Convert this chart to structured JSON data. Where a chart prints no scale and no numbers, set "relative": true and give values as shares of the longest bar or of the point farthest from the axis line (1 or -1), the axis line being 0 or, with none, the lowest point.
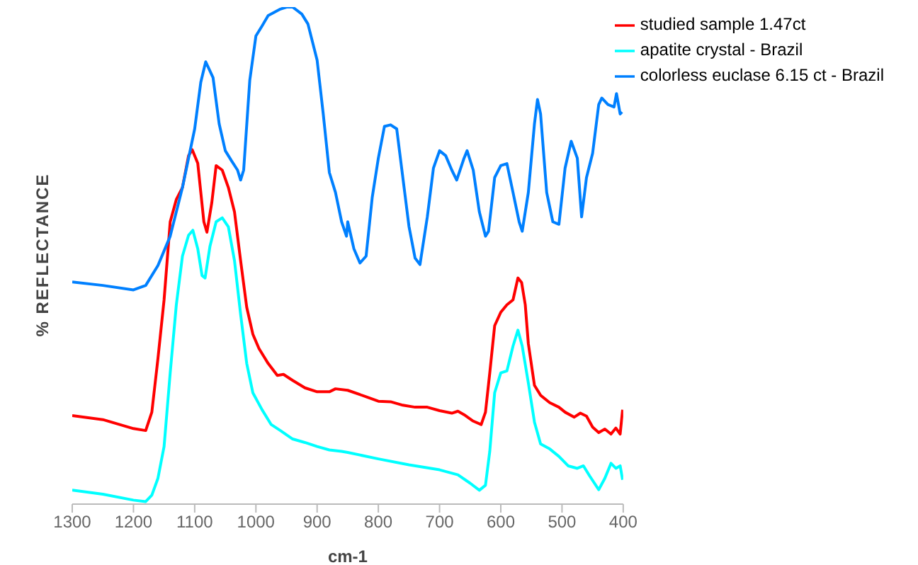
{
  "chart_data": {
    "type": "line",
    "xlabel": "cm-1",
    "ylabel": "% REFLECTANCE",
    "relative": true,
    "xlim": [
      1300,
      400
    ],
    "xticks": [
      1300,
      1200,
      1100,
      1000,
      900,
      800,
      700,
      600,
      500,
      400
    ],
    "legend": "top right",
    "grid": false,
    "marker": "none",
    "line_style": "solid",
    "series": [
      {
        "name": "studied sample 1.47ct",
        "color": "#ff0000",
        "x": [
          1300,
          1250,
          1200,
          1180,
          1170,
          1160,
          1150,
          1140,
          1130,
          1120,
          1110,
          1104,
          1095,
          1085,
          1080,
          1072,
          1065,
          1055,
          1045,
          1035,
          1025,
          1015,
          1005,
          995,
          980,
          965,
          955,
          940,
          920,
          900,
          880,
          870,
          850,
          820,
          800,
          780,
          760,
          740,
          720,
          700,
          680,
          670,
          660,
          645,
          632,
          625,
          618,
          610,
          600,
          590,
          580,
          572,
          566,
          560,
          555,
          545,
          535,
          520,
          505,
          495,
          480,
          470,
          460,
          450,
          440,
          430,
          420,
          412,
          405,
          401
        ],
        "values": [
          0.178,
          0.17,
          0.152,
          0.148,
          0.185,
          0.293,
          0.411,
          0.568,
          0.613,
          0.637,
          0.701,
          0.713,
          0.686,
          0.568,
          0.547,
          0.607,
          0.681,
          0.672,
          0.637,
          0.588,
          0.49,
          0.396,
          0.342,
          0.313,
          0.283,
          0.259,
          0.261,
          0.249,
          0.234,
          0.226,
          0.226,
          0.232,
          0.229,
          0.216,
          0.207,
          0.206,
          0.199,
          0.195,
          0.195,
          0.188,
          0.183,
          0.187,
          0.18,
          0.167,
          0.16,
          0.185,
          0.264,
          0.359,
          0.386,
          0.401,
          0.411,
          0.455,
          0.446,
          0.401,
          0.323,
          0.239,
          0.219,
          0.204,
          0.195,
          0.185,
          0.175,
          0.183,
          0.177,
          0.155,
          0.144,
          0.151,
          0.141,
          0.153,
          0.141,
          0.19
        ]
      },
      {
        "name": "apatite crystal - Brazil",
        "color": "#00ffff",
        "x": [
          1300,
          1250,
          1200,
          1180,
          1170,
          1160,
          1150,
          1140,
          1130,
          1120,
          1110,
          1103,
          1095,
          1088,
          1083,
          1075,
          1065,
          1055,
          1045,
          1035,
          1025,
          1015,
          1005,
          990,
          975,
          960,
          940,
          920,
          900,
          880,
          860,
          850,
          800,
          750,
          700,
          670,
          650,
          635,
          625,
          618,
          610,
          600,
          590,
          580,
          572,
          565,
          555,
          545,
          535,
          520,
          505,
          490,
          475,
          465,
          455,
          440,
          430,
          420,
          412,
          405,
          401
        ],
        "values": [
          0.028,
          0.02,
          0.008,
          0.005,
          0.018,
          0.052,
          0.116,
          0.264,
          0.401,
          0.499,
          0.541,
          0.551,
          0.514,
          0.46,
          0.455,
          0.519,
          0.568,
          0.576,
          0.558,
          0.49,
          0.382,
          0.283,
          0.224,
          0.19,
          0.16,
          0.148,
          0.131,
          0.124,
          0.116,
          0.109,
          0.106,
          0.104,
          0.091,
          0.079,
          0.069,
          0.059,
          0.042,
          0.028,
          0.038,
          0.106,
          0.224,
          0.264,
          0.268,
          0.318,
          0.35,
          0.318,
          0.244,
          0.165,
          0.121,
          0.111,
          0.096,
          0.077,
          0.072,
          0.077,
          0.057,
          0.029,
          0.052,
          0.082,
          0.072,
          0.077,
          0.049
        ]
      },
      {
        "name": "colorless euclase 6.15 ct - Brazil",
        "color": "#0080ff",
        "x": [
          1300,
          1250,
          1200,
          1180,
          1160,
          1140,
          1120,
          1100,
          1090,
          1082,
          1070,
          1060,
          1050,
          1040,
          1030,
          1025,
          1020,
          1010,
          1000,
          990,
          980,
          960,
          950,
          940,
          925,
          915,
          900,
          890,
          880,
          870,
          860,
          852,
          850,
          840,
          830,
          820,
          810,
          800,
          790,
          780,
          770,
          760,
          750,
          740,
          732,
          720,
          710,
          700,
          690,
          680,
          672,
          660,
          655,
          645,
          635,
          625,
          620,
          610,
          600,
          590,
          580,
          570,
          565,
          555,
          545,
          540,
          535,
          525,
          515,
          505,
          495,
          485,
          475,
          468,
          460,
          450,
          440,
          435,
          425,
          415,
          411,
          405,
          402
        ],
        "values": [
          0.447,
          0.44,
          0.431,
          0.44,
          0.48,
          0.539,
          0.637,
          0.755,
          0.849,
          0.89,
          0.858,
          0.765,
          0.711,
          0.691,
          0.672,
          0.652,
          0.672,
          0.853,
          0.942,
          0.962,
          0.983,
          0.996,
          1,
          1,
          0.986,
          0.966,
          0.893,
          0.785,
          0.667,
          0.627,
          0.568,
          0.539,
          0.568,
          0.514,
          0.485,
          0.499,
          0.617,
          0.696,
          0.76,
          0.763,
          0.755,
          0.657,
          0.559,
          0.495,
          0.482,
          0.578,
          0.676,
          0.711,
          0.701,
          0.672,
          0.652,
          0.696,
          0.711,
          0.672,
          0.588,
          0.539,
          0.549,
          0.657,
          0.681,
          0.685,
          0.627,
          0.568,
          0.549,
          0.627,
          0.765,
          0.814,
          0.785,
          0.627,
          0.568,
          0.563,
          0.676,
          0.73,
          0.696,
          0.578,
          0.657,
          0.706,
          0.804,
          0.817,
          0.804,
          0.799,
          0.826,
          0.785,
          0.789
        ]
      }
    ]
  }
}
